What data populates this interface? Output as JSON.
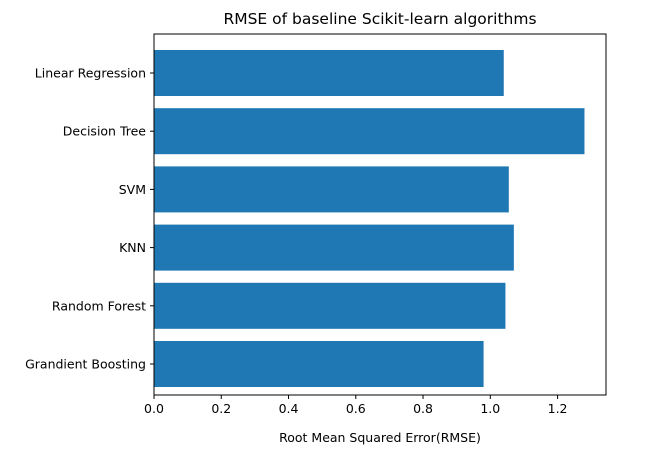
{
  "chart_data": {
    "type": "bar",
    "orientation": "horizontal",
    "title": "RMSE of baseline Scikit-learn algorithms",
    "xlabel": "Root Mean Squared Error(RMSE)",
    "ylabel": "",
    "categories": [
      "Linear Regression",
      "Decision Tree",
      "SVM",
      "KNN",
      "Random Forest",
      "Grandient Boosting"
    ],
    "values": [
      1.04,
      1.28,
      1.055,
      1.07,
      1.045,
      0.98
    ],
    "xlim": [
      0,
      1.344
    ],
    "xticks": [
      0.0,
      0.2,
      0.4,
      0.6,
      0.8,
      1.0,
      1.2
    ],
    "xtick_labels": [
      "0.0",
      "0.2",
      "0.4",
      "0.6",
      "0.8",
      "1.0",
      "1.2"
    ],
    "bar_color": "#1f77b4",
    "grid": false,
    "legend": "none"
  }
}
